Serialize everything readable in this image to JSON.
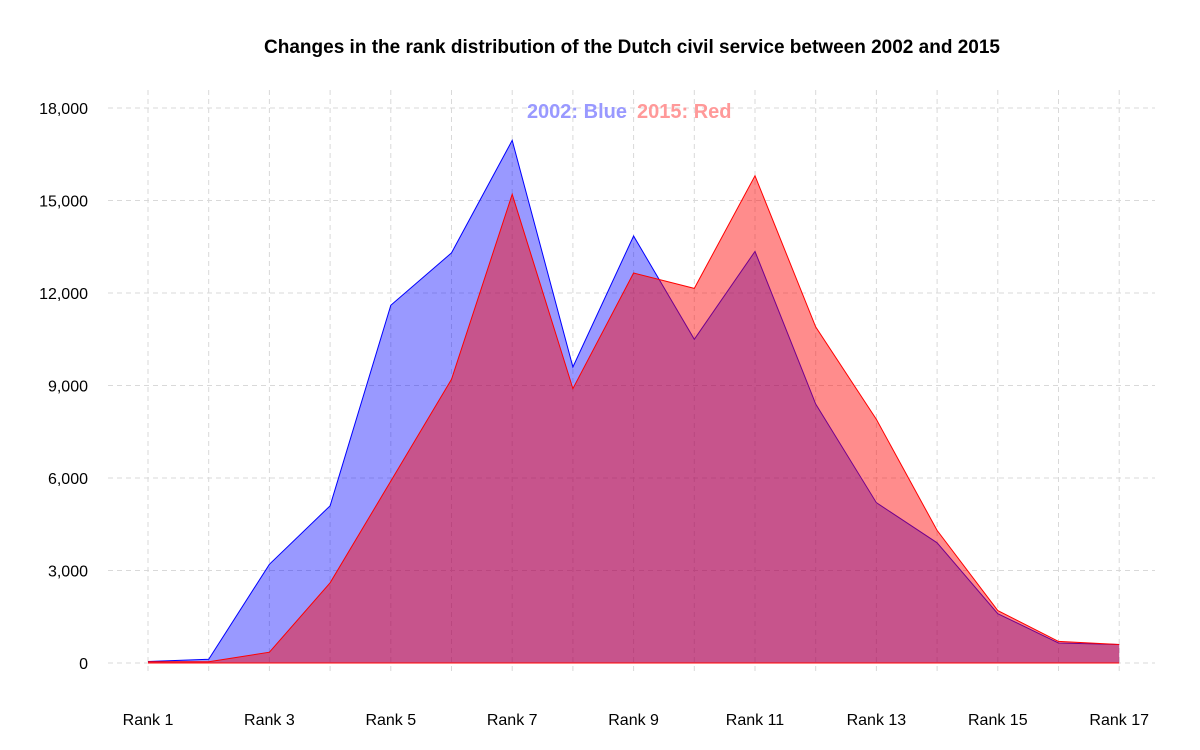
{
  "chart_data": {
    "type": "area",
    "title": "Changes in the rank distribution of the Dutch civil service  between 2002 and 2015",
    "xlabel": "",
    "ylabel": "",
    "categories": [
      "Rank  1",
      "Rank  2",
      "Rank  3",
      "Rank  4",
      "Rank  5",
      "Rank  6",
      "Rank  7",
      "Rank  8",
      "Rank  9",
      "Rank 10",
      "Rank 11",
      "Rank 12",
      "Rank 13",
      "Rank 14",
      "Rank 15",
      "Rank 16",
      "Rank 17"
    ],
    "x_tick_labels": [
      "Rank  1",
      "Rank  3",
      "Rank  5",
      "Rank  7",
      "Rank  9",
      "Rank 11",
      "Rank 13",
      "Rank 15",
      "Rank 17"
    ],
    "ylim": [
      0,
      18000
    ],
    "y_ticks": [
      0,
      3000,
      6000,
      9000,
      12000,
      15000,
      18000
    ],
    "y_tick_labels": [
      "0",
      "3,000",
      "6,000",
      "9,000",
      "12,000",
      "15,000",
      "18,000"
    ],
    "grid": true,
    "legend_placement": "top-center",
    "series": [
      {
        "name": "2002: Blue",
        "color": "#0000ff",
        "fill": "#9999ff",
        "values": [
          50,
          120,
          3200,
          5100,
          11600,
          13300,
          16950,
          9600,
          13850,
          10500,
          13350,
          8400,
          5200,
          3900,
          1600,
          650,
          600
        ]
      },
      {
        "name": "2015: Red",
        "color": "#ff0000",
        "fill": "#ff8080",
        "values": [
          40,
          40,
          350,
          2600,
          5900,
          9200,
          15200,
          8900,
          12650,
          12150,
          15800,
          10900,
          7900,
          4300,
          1700,
          700,
          600
        ]
      }
    ]
  }
}
